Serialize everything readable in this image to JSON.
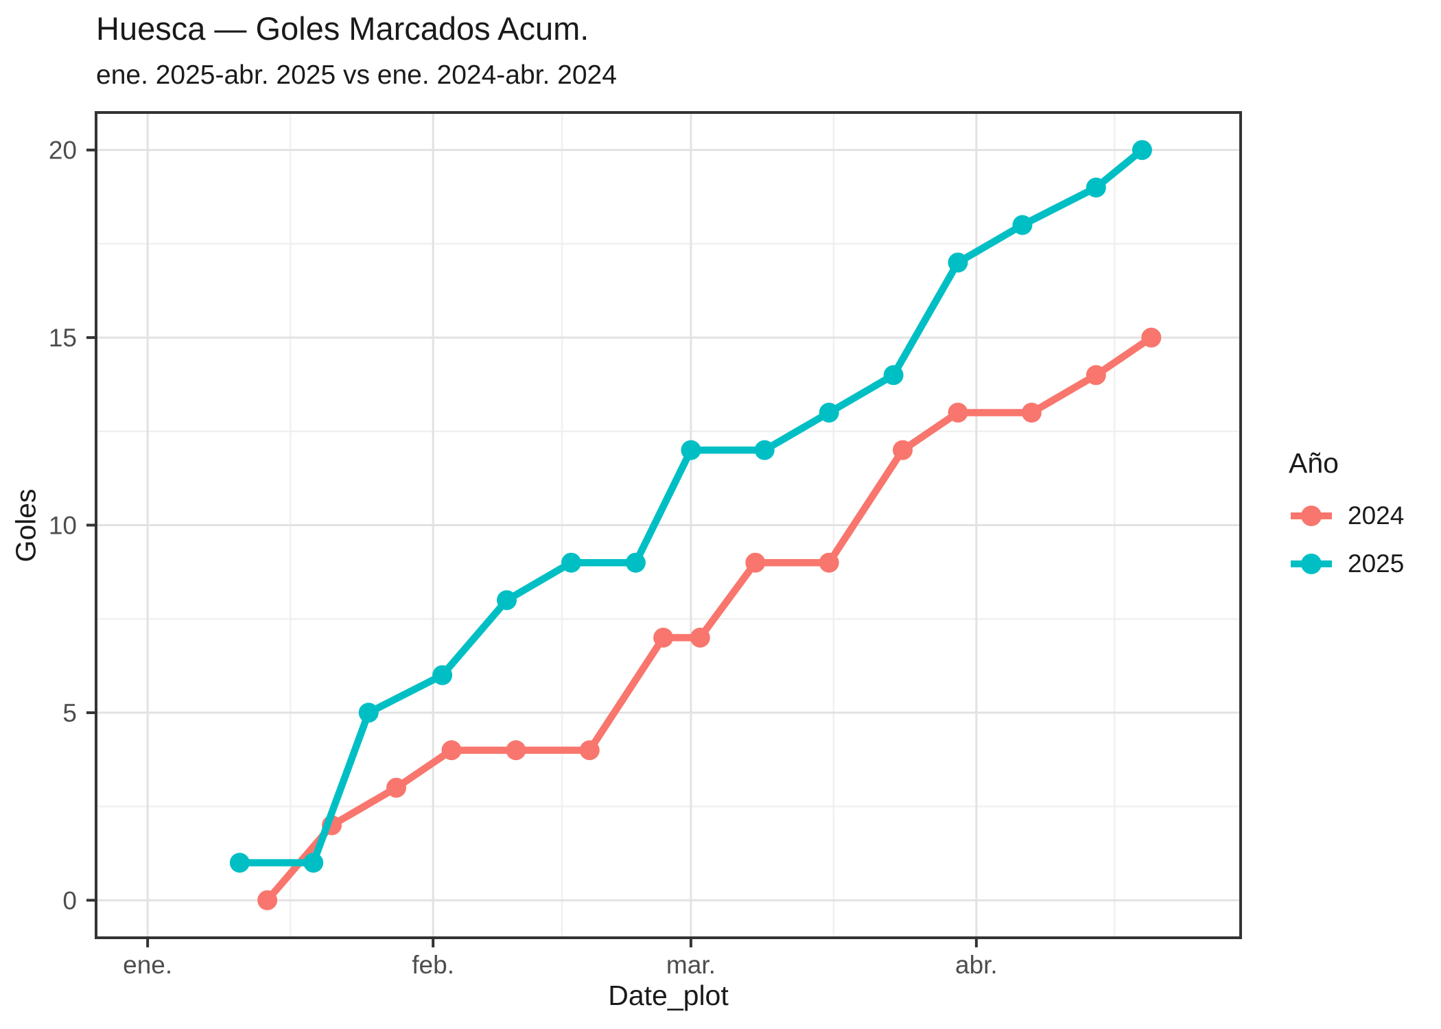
{
  "chart_data": {
    "type": "line",
    "title": "Huesca — Goles Marcados Acum.",
    "subtitle": "ene. 2025-abr. 2025 vs ene. 2024-abr. 2024",
    "xlabel": "Date_plot",
    "ylabel": "Goles",
    "legend_title": "Año",
    "legend_position": "right",
    "grid": true,
    "x_unit": "day-of-year (ene 1 = 1)",
    "xlim_days": [
      -4.6,
      119.7
    ],
    "ylim": [
      -1.0,
      21.0
    ],
    "x_ticks": [
      {
        "label": "ene.",
        "day": 1
      },
      {
        "label": "feb.",
        "day": 32
      },
      {
        "label": "mar.",
        "day": 60
      },
      {
        "label": "abr.",
        "day": 91
      }
    ],
    "x_minor_days": [
      16.5,
      46,
      75.5,
      106
    ],
    "y_ticks": [
      0,
      5,
      10,
      15,
      20
    ],
    "y_minor": [
      2.5,
      7.5,
      12.5,
      17.5
    ],
    "colors": {
      "grid_major": "#e2e2e2",
      "grid_minor": "#f0f0f0",
      "panel_border": "#333333",
      "tick": "#333333",
      "tick_label": "#4d4d4d"
    },
    "series": [
      {
        "name": "2024",
        "color": "#F8766D",
        "points": [
          [
            14,
            0
          ],
          [
            21,
            2
          ],
          [
            28,
            3
          ],
          [
            34,
            4
          ],
          [
            41,
            4
          ],
          [
            49,
            4
          ],
          [
            57,
            7
          ],
          [
            61,
            7
          ],
          [
            67,
            9
          ],
          [
            75,
            9
          ],
          [
            83,
            12
          ],
          [
            89,
            13
          ],
          [
            97,
            13
          ],
          [
            104,
            14
          ],
          [
            110,
            15
          ]
        ]
      },
      {
        "name": "2025",
        "color": "#00BFC4",
        "points": [
          [
            11,
            1
          ],
          [
            19,
            1
          ],
          [
            25,
            5
          ],
          [
            33,
            6
          ],
          [
            40,
            8
          ],
          [
            47,
            9
          ],
          [
            54,
            9
          ],
          [
            60,
            12
          ],
          [
            68,
            12
          ],
          [
            75,
            13
          ],
          [
            82,
            14
          ],
          [
            89,
            17
          ],
          [
            96,
            18
          ],
          [
            104,
            19
          ],
          [
            109,
            20
          ]
        ]
      }
    ]
  }
}
